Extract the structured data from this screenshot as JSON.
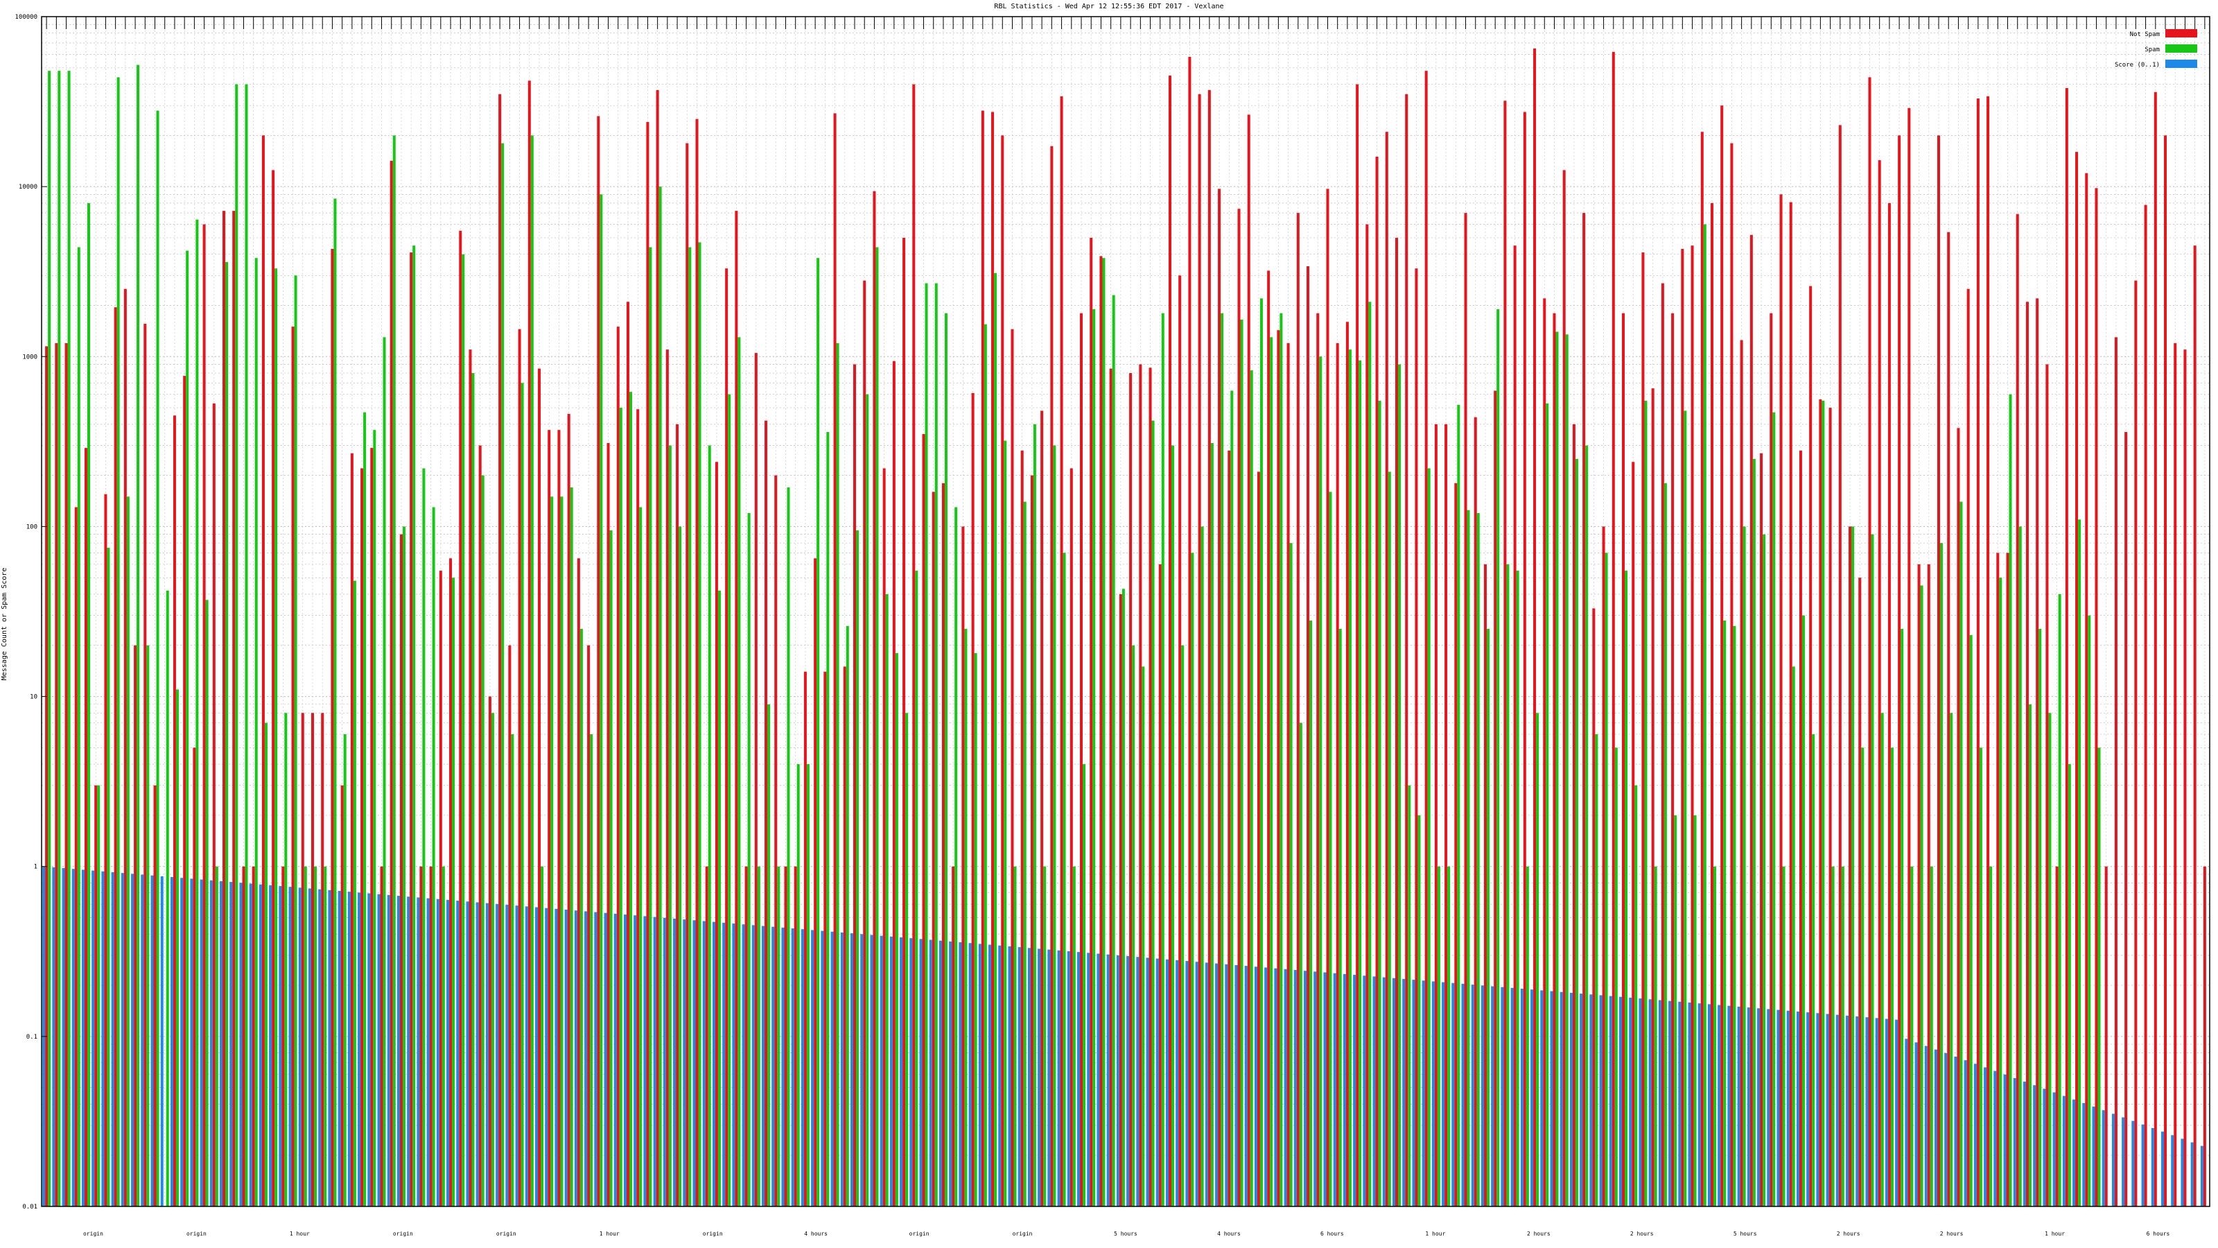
{
  "chart_data": {
    "type": "bar",
    "title": "RBL Statistics - Wed Apr 12 12:55:36 EDT 2017 - Vexlane",
    "ylabel": "Message Count or Spam Score",
    "xlabel": "",
    "yscale": "log",
    "ylim": [
      0.01,
      100000
    ],
    "yticks": [
      "0.01",
      "0.1",
      "1",
      "10",
      "100",
      "1000",
      "10000",
      "100000"
    ],
    "grid": true,
    "legend_position": "top-right",
    "colors": {
      "not_spam": "#e8141c",
      "spam": "#14c814",
      "score": "#1e8ae6"
    },
    "x_category_labels": [
      "origin",
      "origin",
      "1 hour",
      "origin",
      "origin",
      "1 hour",
      "origin",
      "4 hours",
      "origin",
      "origin",
      "5 hours",
      "4 hours",
      "6 hours",
      "1 hour",
      "2 hours",
      "2 hours",
      "5 hours",
      "2 hours",
      "2 hours",
      "1 hour",
      "6 hours"
    ],
    "series": [
      {
        "name": "Not Spam",
        "values": [
          1150,
          1200,
          1200,
          130,
          290,
          3,
          155,
          1950,
          2500,
          20,
          1560,
          3,
          0.01,
          450,
          770,
          5,
          6000,
          530,
          7200,
          7200,
          1,
          1,
          20000,
          12500,
          1,
          1500,
          8,
          8,
          8,
          4300,
          3,
          270,
          220,
          290,
          1,
          14200,
          90,
          4100,
          1,
          1,
          55,
          65,
          5500,
          1100,
          300,
          10,
          35000,
          20,
          1450,
          42000,
          850,
          370,
          370,
          460,
          65,
          20,
          26000,
          310,
          1500,
          2100,
          490,
          24000,
          37000,
          1100,
          400,
          18000,
          25000,
          1,
          240,
          3300,
          7200,
          1,
          1050,
          420,
          200,
          1,
          1,
          14,
          65,
          14,
          27000,
          15,
          900,
          2800,
          9400,
          220,
          940,
          5000,
          40000,
          350,
          160,
          180,
          1,
          100,
          610,
          28000,
          27500,
          20000,
          1450,
          280,
          200,
          480,
          17300,
          34000,
          220,
          1800,
          5000,
          3900,
          850,
          40,
          800,
          900,
          860,
          60,
          45000,
          3000,
          58000,
          35000,
          37000,
          9700,
          280,
          7400,
          26500,
          210,
          3200,
          1430,
          1200,
          7000,
          3400,
          1800,
          9700,
          1200,
          1600,
          40000,
          6000,
          15000,
          21000,
          5000,
          35000,
          3300,
          48000,
          400,
          400,
          180,
          7000,
          440,
          60,
          630,
          32000,
          4500,
          27500,
          65000,
          2200,
          1800,
          12500,
          400,
          7000,
          33,
          100,
          62000,
          1800,
          240,
          4100,
          650,
          2700,
          1800,
          4300,
          4500,
          21000,
          8000,
          30000,
          18000,
          1250,
          5200,
          270,
          1800,
          9000,
          8100,
          280,
          2600,
          560,
          500,
          23000,
          100,
          50,
          44000,
          14300,
          8000,
          20000,
          29000,
          60,
          60,
          20000,
          5400,
          380,
          2500,
          33000,
          34000,
          70,
          70,
          6900,
          2100,
          2200,
          900,
          1,
          38000,
          16000,
          12000,
          9800,
          1,
          1300,
          360,
          2800,
          7800,
          36000,
          20000,
          1200,
          1100,
          4500,
          1
        ],
        "line_note": ""
      },
      {
        "name": "Spam",
        "values": [
          48000,
          48000,
          48000,
          4400,
          8000,
          3,
          75,
          44000,
          150,
          52000,
          20,
          28000,
          42,
          11,
          4200,
          6400,
          37,
          1,
          3600,
          40000,
          40000,
          3800,
          7,
          3300,
          8,
          3000,
          1,
          1,
          1,
          8500,
          6,
          48,
          470,
          370,
          1300,
          20000,
          100,
          4500,
          220,
          130,
          1,
          50,
          4000,
          800,
          200,
          8,
          18000,
          6,
          700,
          20000,
          1,
          150,
          150,
          170,
          25,
          6,
          9000,
          95,
          500,
          620,
          130,
          4400,
          10000,
          300,
          100,
          4400,
          4700,
          300,
          42,
          600,
          1300,
          120,
          1,
          9,
          1,
          170,
          4,
          4,
          3800,
          360,
          1200,
          26,
          95,
          600,
          4400,
          40,
          18,
          8,
          55,
          2700,
          2700,
          1800,
          130,
          25,
          18,
          1550,
          3100,
          320,
          1,
          140,
          400,
          1,
          300,
          70,
          1,
          4,
          1900,
          3800,
          2300,
          43,
          20,
          15,
          420,
          1800,
          300,
          20,
          70,
          100,
          310,
          1800,
          630,
          1650,
          830,
          2200,
          1300,
          1800,
          80,
          7,
          28,
          1000,
          160,
          25,
          1100,
          950,
          2100,
          550,
          210,
          900,
          3,
          2,
          220,
          1,
          1,
          520,
          125,
          120,
          25,
          1900,
          60,
          55,
          1,
          8,
          530,
          1400,
          1350,
          250,
          300,
          6,
          70,
          5,
          55,
          3,
          550,
          1,
          180,
          2,
          480,
          2,
          6000,
          1,
          28,
          26,
          100,
          250,
          90,
          470,
          1,
          15,
          30,
          6,
          550,
          1,
          1,
          100,
          5,
          90,
          8,
          5,
          25,
          1,
          45,
          1,
          80,
          8,
          140,
          23,
          5,
          1,
          50,
          600,
          100,
          9,
          25,
          8,
          40,
          4,
          110,
          30,
          5
        ]
      },
      {
        "name": "Score (0..1)",
        "values": "descending"
      }
    ]
  },
  "legend": {
    "items": [
      {
        "label": "Not Spam",
        "color": "#e8141c"
      },
      {
        "label": "Spam",
        "color": "#14c814"
      },
      {
        "label": "Score (0..1)",
        "color": "#1e8ae6"
      }
    ]
  }
}
